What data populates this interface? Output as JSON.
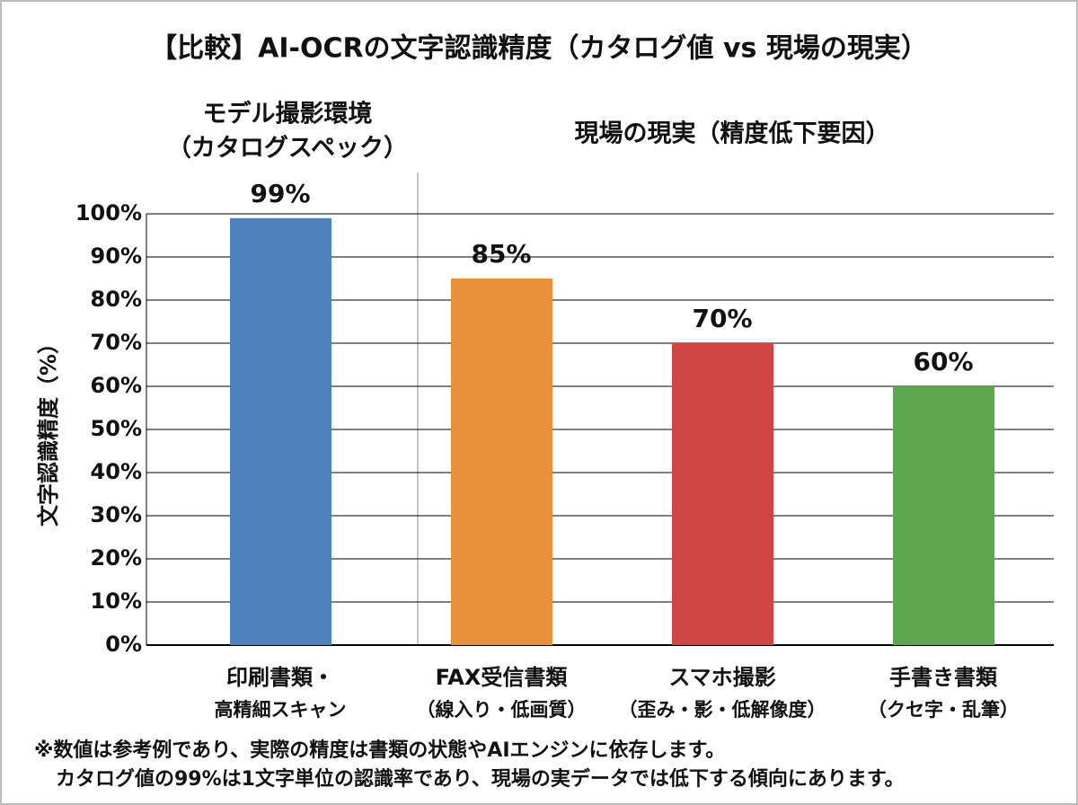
{
  "chart_data": {
    "type": "bar",
    "title": "【比較】AI-OCRの文字認識精度（カタログ値 vs 現場の現実）",
    "annotations": {
      "group_left": [
        "モデル撮影環境",
        "（カタログスペック）"
      ],
      "group_right": "現場の現実（精度低下要因）"
    },
    "y_label": "文字認識精度（%）",
    "categories": [
      [
        "印刷書類・",
        "高精細スキャン"
      ],
      [
        "FAX受信書類",
        "（線入り・低画質）"
      ],
      [
        "スマホ撮影",
        "（歪み・影・低解像度）"
      ],
      [
        "手書き書類",
        "（クセ字・乱筆）"
      ]
    ],
    "values": [
      99,
      85,
      70,
      60
    ],
    "value_labels": [
      "99%",
      "85%",
      "70%",
      "60%"
    ],
    "colors": [
      "#4f81bd",
      "#e8903a",
      "#d24545",
      "#5ea64f"
    ],
    "ylim": [
      0,
      100
    ],
    "yticks": [
      {
        "value": 0,
        "label": "0%"
      },
      {
        "value": 10,
        "label": "10%"
      },
      {
        "value": 20,
        "label": "20%"
      },
      {
        "value": 30,
        "label": "30%"
      },
      {
        "value": 40,
        "label": "40%"
      },
      {
        "value": 50,
        "label": "50%"
      },
      {
        "value": 60,
        "label": "60%"
      },
      {
        "value": 70,
        "label": "70%"
      },
      {
        "value": 80,
        "label": "80%"
      },
      {
        "value": 90,
        "label": "90%"
      },
      {
        "value": 100,
        "label": "100%"
      }
    ],
    "grid": true,
    "footnotes": [
      "※数値は参考例であり、実際の精度は書類の状態やAIエンジンに依存します。",
      "カタログ値の99%は1文字単位の認識率であり、現場の実データでは低下する傾向にあります。"
    ]
  }
}
